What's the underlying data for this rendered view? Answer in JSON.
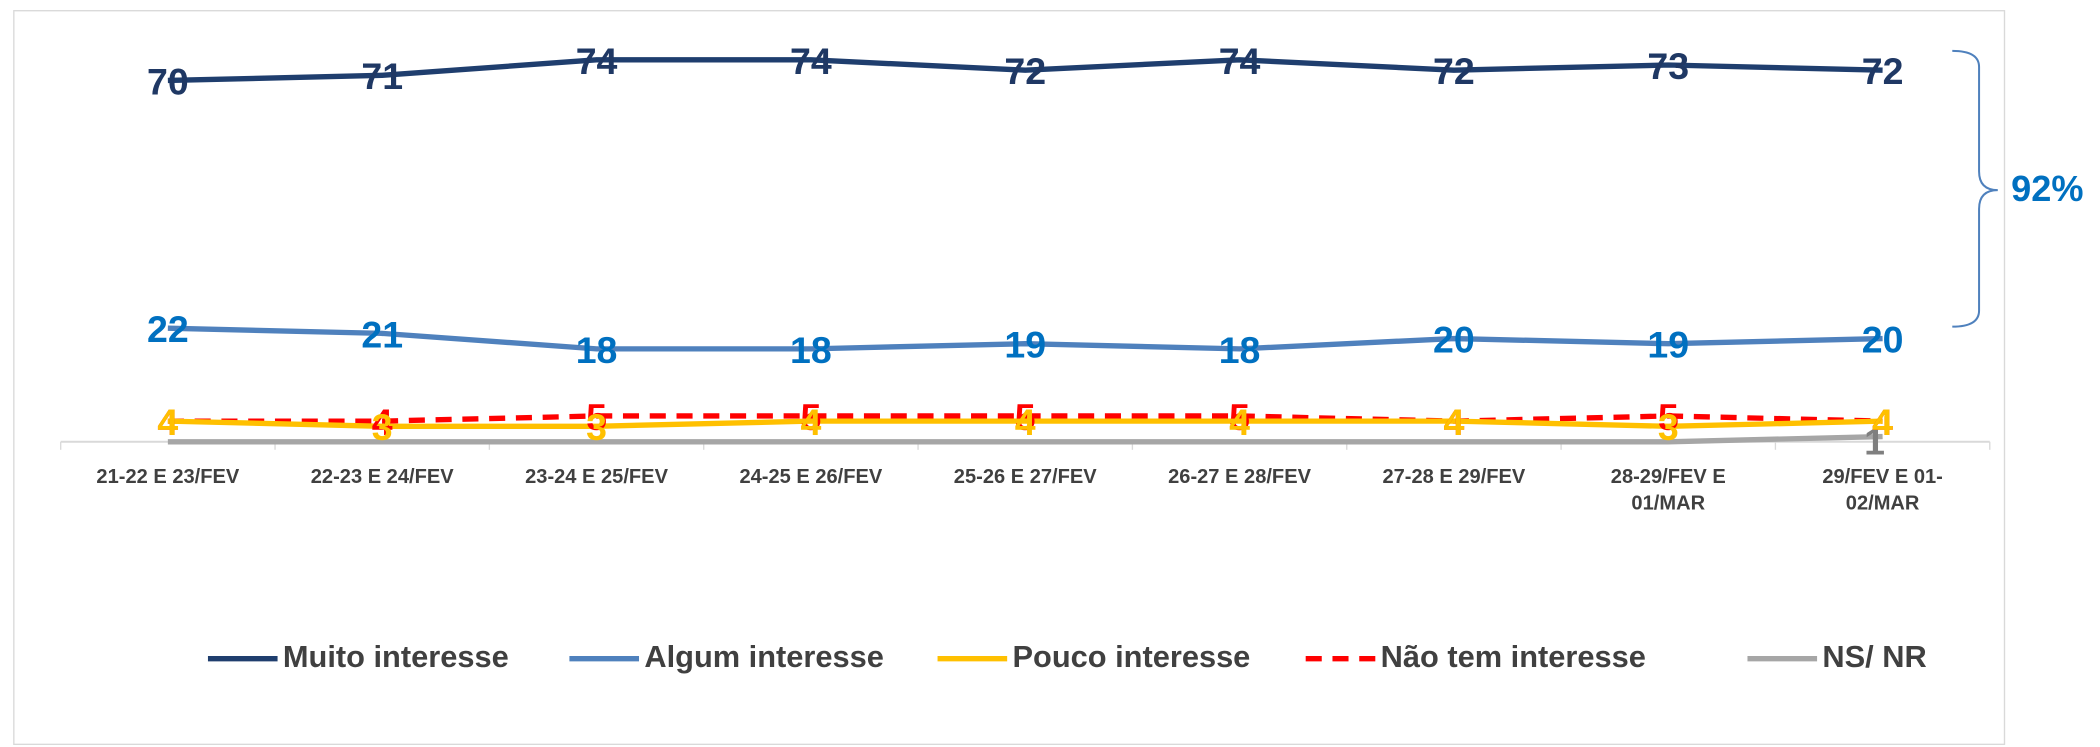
{
  "chart_data": {
    "type": "line",
    "categories": [
      "21-22 E 23/FEV",
      "22-23 E 24/FEV",
      "23-24 E 25/FEV",
      "24-25 E 26/FEV",
      "25-26 E 27/FEV",
      "26-27 E 28/FEV",
      "27-28 E 29/FEV",
      "28-29/FEV E 01/MAR",
      "29/FEV E 01-02/MAR"
    ],
    "series": [
      {
        "name": "Muito interesse",
        "color": "#1f3e6e",
        "label_color": "#1f3864",
        "values": [
          70,
          71,
          74,
          74,
          72,
          74,
          72,
          73,
          72
        ]
      },
      {
        "name": "Algum interesse",
        "color": "#4f81bd",
        "label_color": "#0070c0",
        "values": [
          22,
          21,
          18,
          18,
          19,
          18,
          20,
          19,
          20
        ]
      },
      {
        "name": "Pouco interesse",
        "color": "#ffc000",
        "label_color": "#ffc000",
        "values": [
          4,
          3,
          3,
          4,
          4,
          4,
          4,
          3,
          4
        ]
      },
      {
        "name": "Não tem interesse",
        "color": "#ff0000",
        "label_color": "#ff0000",
        "dashed": true,
        "values": [
          4,
          4,
          5,
          5,
          5,
          5,
          4,
          5,
          4
        ]
      },
      {
        "name": "NS/ NR",
        "color": "#a6a6a6",
        "label_color": "#7f7f7f",
        "values": [
          0,
          0,
          0,
          0,
          0,
          0,
          0,
          0,
          1
        ],
        "value_labels": [
          null,
          null,
          null,
          null,
          null,
          null,
          null,
          null,
          "1"
        ]
      }
    ],
    "annotation": "92%",
    "ylim": [
      0,
      83
    ],
    "legend": "bottom"
  }
}
